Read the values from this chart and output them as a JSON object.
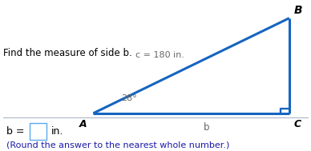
{
  "title_text": "Find the measure of side b.",
  "c_label": "c = 180 in.",
  "angle_label": "28°",
  "b_label": "b",
  "vertex_A": "A",
  "vertex_B": "B",
  "vertex_C": "C",
  "answer_prefix": "b = ",
  "answer_suffix": "in.",
  "round_note": "(Round the answer to the nearest whole number.)",
  "triangle_color": "#1565c0",
  "triangle_linewidth": 2.2,
  "bg_color": "#ffffff",
  "input_box_color": "#ffffff",
  "input_box_edge": "#5aaaee",
  "divider_color": "#aab8c8",
  "answer_color": "#1a1aaa",
  "text_color": "#000000",
  "label_color": "#666666",
  "A": [
    0.3,
    0.18
  ],
  "B": [
    0.92,
    0.9
  ],
  "C": [
    0.92,
    0.18
  ],
  "fig_width": 3.88,
  "fig_height": 1.89,
  "dpi": 100
}
